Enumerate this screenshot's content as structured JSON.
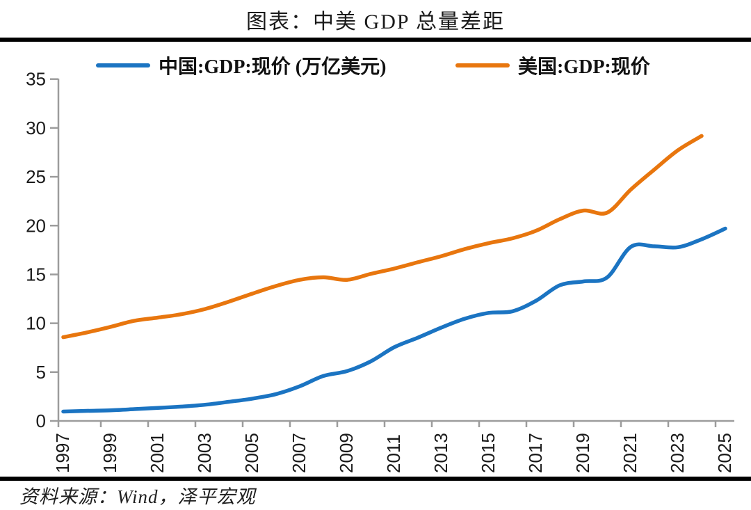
{
  "title": "图表：中美 GDP 总量差距",
  "source_note": "资料来源：Wind，泽平宏观",
  "chart_data": {
    "type": "line",
    "title": "图表：中美 GDP 总量差距",
    "x": [
      1997,
      1998,
      1999,
      2000,
      2001,
      2002,
      2003,
      2004,
      2005,
      2006,
      2007,
      2008,
      2009,
      2010,
      2011,
      2012,
      2013,
      2014,
      2015,
      2016,
      2017,
      2018,
      2019,
      2020,
      2021,
      2022,
      2023,
      2024,
      2025
    ],
    "series": [
      {
        "name": "中国:GDP:现价 (万亿美元)",
        "color": "#1B74C2",
        "values": [
          0.96,
          1.03,
          1.09,
          1.21,
          1.34,
          1.47,
          1.66,
          1.96,
          2.29,
          2.75,
          3.55,
          4.6,
          5.1,
          6.09,
          7.55,
          8.53,
          9.57,
          10.48,
          11.06,
          11.23,
          12.31,
          13.89,
          14.28,
          14.69,
          17.82,
          17.88,
          17.79,
          18.6,
          19.7
        ]
      },
      {
        "name": "美国:GDP:现价",
        "color": "#E8760E",
        "values": [
          8.58,
          9.06,
          9.63,
          10.25,
          10.58,
          10.93,
          11.46,
          12.21,
          13.04,
          13.82,
          14.45,
          14.71,
          14.45,
          15.05,
          15.6,
          16.25,
          16.88,
          17.61,
          18.21,
          18.7,
          19.48,
          20.66,
          21.54,
          21.32,
          23.68,
          25.74,
          27.72,
          29.18,
          null
        ]
      }
    ],
    "xlabel": "",
    "ylabel": "",
    "ylim": [
      0,
      35
    ],
    "yticks": [
      0,
      5,
      10,
      15,
      20,
      25,
      30,
      35
    ],
    "xticks": [
      1997,
      1999,
      2001,
      2003,
      2005,
      2007,
      2009,
      2011,
      2013,
      2015,
      2017,
      2019,
      2021,
      2023,
      2025
    ],
    "grid": false,
    "legend_position": "top",
    "line_style": "smooth",
    "axis_color": "#9C9C9C",
    "tick_label_color": "#1a1a1a"
  }
}
